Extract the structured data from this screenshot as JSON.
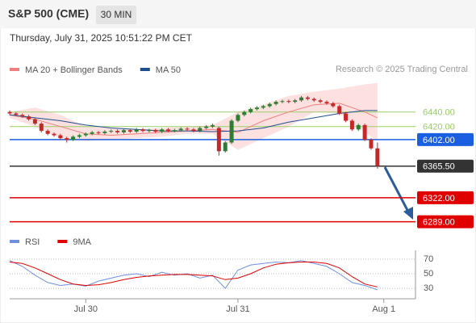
{
  "header": {
    "title": "S&P 500 (CME)",
    "interval": "30 MIN",
    "timestamp": "Thursday, July 31, 2025 10:51:22 PM CET"
  },
  "chart_data": [
    {
      "type": "candlestick",
      "source": "Research © 2025 Trading Central",
      "up_color": "#2e7d32",
      "down_color": "#c62828",
      "xlim": [
        0,
        64
      ],
      "ylim": [
        6283,
        6483
      ],
      "xticks": [
        {
          "value": 12,
          "label": "Jul 30"
        },
        {
          "value": 36,
          "label": "Jul 31"
        },
        {
          "value": 59,
          "label": "Aug 1"
        }
      ],
      "open": [
        6440,
        6438,
        6436,
        6434,
        6430,
        6424,
        6414,
        6410,
        6408,
        6404,
        6402,
        6406,
        6408,
        6410,
        6412,
        6411,
        6413,
        6414,
        6412,
        6415,
        6413,
        6416,
        6414,
        6415,
        6413,
        6416,
        6414,
        6415,
        6417,
        6416,
        6414,
        6418,
        6420,
        6418,
        6386,
        6398,
        6428,
        6436,
        6440,
        6444,
        6446,
        6448,
        6451,
        6454,
        6455,
        6454,
        6456,
        6460,
        6458,
        6456,
        6454,
        6452,
        6448,
        6438,
        6428,
        6416,
        6422,
        6402,
        6390
      ],
      "high": [
        6442,
        6440,
        6438,
        6436,
        6432,
        6426,
        6416,
        6412,
        6410,
        6406,
        6408,
        6410,
        6412,
        6414,
        6414,
        6415,
        6416,
        6416,
        6417,
        6417,
        6418,
        6418,
        6417,
        6417,
        6418,
        6418,
        6417,
        6419,
        6419,
        6418,
        6420,
        6422,
        6424,
        6420,
        6400,
        6430,
        6438,
        6442,
        6446,
        6448,
        6450,
        6453,
        6456,
        6457,
        6457,
        6458,
        6462,
        6462,
        6460,
        6458,
        6456,
        6454,
        6450,
        6440,
        6430,
        6424,
        6424,
        6404,
        6398
      ],
      "low": [
        6436,
        6434,
        6432,
        6428,
        6422,
        6412,
        6408,
        6406,
        6402,
        6398,
        6400,
        6404,
        6406,
        6408,
        6409,
        6409,
        6411,
        6410,
        6410,
        6411,
        6411,
        6412,
        6412,
        6411,
        6411,
        6412,
        6412,
        6413,
        6414,
        6412,
        6412,
        6416,
        6418,
        6380,
        6384,
        6396,
        6426,
        6434,
        6438,
        6442,
        6444,
        6446,
        6449,
        6452,
        6452,
        6452,
        6454,
        6456,
        6454,
        6452,
        6450,
        6446,
        6436,
        6426,
        6414,
        6414,
        6400,
        6388,
        6362
      ],
      "close": [
        6438,
        6436,
        6434,
        6430,
        6424,
        6414,
        6410,
        6408,
        6404,
        6402,
        6406,
        6408,
        6410,
        6412,
        6411,
        6413,
        6414,
        6412,
        6415,
        6413,
        6416,
        6414,
        6415,
        6413,
        6416,
        6414,
        6415,
        6417,
        6416,
        6414,
        6418,
        6420,
        6422,
        6386,
        6398,
        6428,
        6436,
        6440,
        6444,
        6446,
        6448,
        6451,
        6454,
        6455,
        6454,
        6456,
        6460,
        6458,
        6456,
        6454,
        6452,
        6448,
        6438,
        6428,
        6416,
        6422,
        6402,
        6390,
        6366
      ],
      "series": [
        {
          "name": "MA 20 + Bollinger Bands",
          "color": "#f08080",
          "band_color": "#fde0e0",
          "x": [
            0,
            4,
            8,
            12,
            16,
            20,
            24,
            28,
            32,
            36,
            40,
            44,
            48,
            52,
            56,
            58
          ],
          "values": [
            6436,
            6430,
            6420,
            6410,
            6408,
            6410,
            6412,
            6414,
            6416,
            6412,
            6428,
            6440,
            6450,
            6452,
            6440,
            6432
          ],
          "upper": [
            6440,
            6446,
            6436,
            6420,
            6418,
            6416,
            6418,
            6420,
            6422,
            6440,
            6450,
            6462,
            6468,
            6472,
            6478,
            6480
          ],
          "lower": [
            6432,
            6420,
            6404,
            6400,
            6402,
            6404,
            6406,
            6410,
            6410,
            6388,
            6404,
            6420,
            6440,
            6438,
            6412,
            6400
          ]
        },
        {
          "name": "MA 50",
          "color": "#1f4e8c",
          "x": [
            0,
            4,
            8,
            12,
            16,
            20,
            24,
            28,
            32,
            36,
            40,
            44,
            48,
            52,
            56,
            58
          ],
          "values": [
            6436,
            6432,
            6428,
            6422,
            6418,
            6416,
            6414,
            6414,
            6413,
            6414,
            6418,
            6426,
            6432,
            6438,
            6442,
            6442
          ]
        }
      ],
      "levels": [
        {
          "value": 6440,
          "label": "6440.00",
          "color": "#9acd6a",
          "boxed": false
        },
        {
          "value": 6420,
          "label": "6420.00",
          "color": "#9acd6a",
          "boxed": false
        },
        {
          "value": 6402,
          "label": "6402.00",
          "color": "#1a5fe0",
          "boxed": true
        },
        {
          "value": 6365.5,
          "label": "6365.50",
          "color": "#333333",
          "boxed": true
        },
        {
          "value": 6322,
          "label": "6322.00",
          "color": "#e00000",
          "boxed": true
        },
        {
          "value": 6289,
          "label": "6289.00",
          "color": "#e00000",
          "boxed": true
        }
      ]
    },
    {
      "type": "oscillator",
      "xlim": [
        0,
        64
      ],
      "ylim": [
        18,
        82
      ],
      "yticks": [
        70,
        50,
        30
      ],
      "series": [
        {
          "name": "RSI",
          "color": "#6f8fe0",
          "x": [
            0,
            2,
            4,
            6,
            8,
            10,
            12,
            14,
            16,
            18,
            20,
            22,
            24,
            26,
            28,
            30,
            32,
            34,
            36,
            38,
            40,
            42,
            44,
            46,
            48,
            50,
            52,
            54,
            56,
            58
          ],
          "values": [
            68,
            60,
            48,
            38,
            34,
            36,
            33,
            40,
            44,
            48,
            50,
            46,
            52,
            48,
            50,
            44,
            48,
            30,
            55,
            62,
            64,
            66,
            65,
            68,
            64,
            60,
            50,
            38,
            34,
            28
          ]
        },
        {
          "name": "9MA",
          "color": "#e00000",
          "x": [
            0,
            2,
            4,
            6,
            8,
            10,
            12,
            14,
            16,
            18,
            20,
            22,
            24,
            26,
            28,
            30,
            32,
            34,
            36,
            38,
            40,
            42,
            44,
            46,
            48,
            50,
            52,
            54,
            56,
            58
          ],
          "values": [
            66,
            64,
            58,
            50,
            42,
            36,
            34,
            35,
            38,
            42,
            45,
            47,
            48,
            49,
            49,
            48,
            47,
            42,
            44,
            50,
            58,
            63,
            65,
            66,
            66,
            64,
            58,
            46,
            36,
            32
          ]
        }
      ]
    }
  ]
}
